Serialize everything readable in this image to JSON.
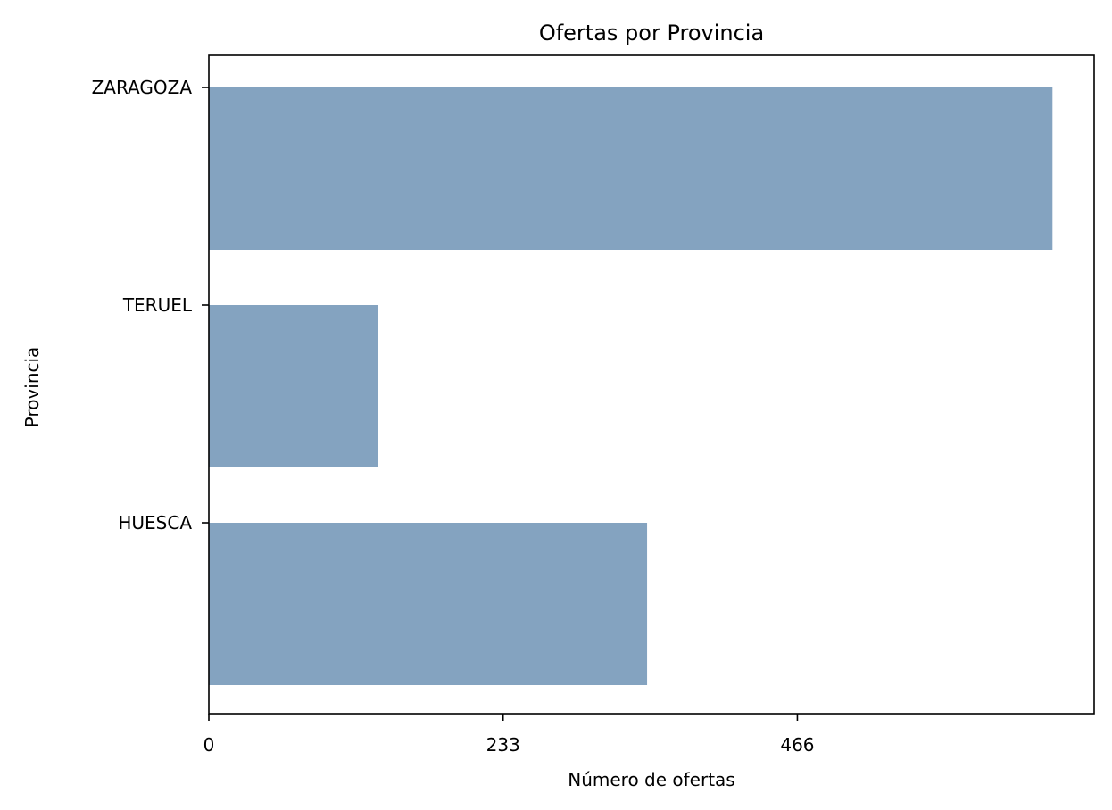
{
  "chart_data": {
    "type": "bar",
    "orientation": "horizontal",
    "title": "Ofertas por Provincia",
    "xlabel": "Número de ofertas",
    "ylabel": "Provincia",
    "categories": [
      "ZARAGOZA",
      "TERUEL",
      "HUESCA"
    ],
    "values": [
      668,
      134,
      347
    ],
    "xticks": [
      "0",
      "233",
      "466"
    ],
    "xlim": [
      0,
      701
    ],
    "grid": false,
    "bar_color": "#84a3c0"
  }
}
